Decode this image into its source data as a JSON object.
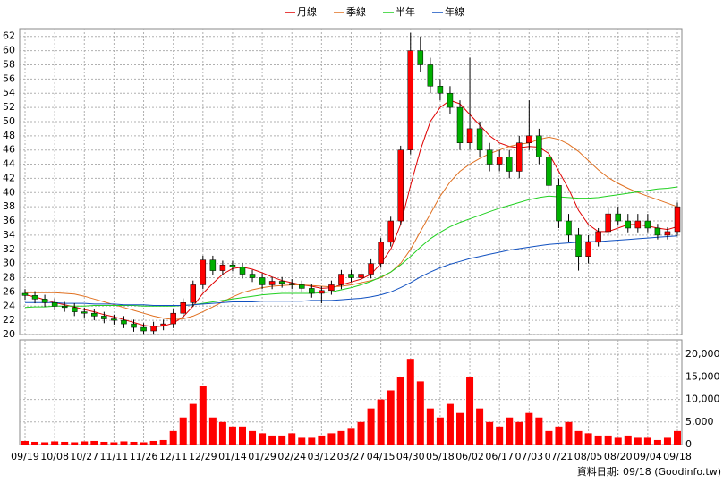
{
  "chart_data": [
    {
      "type": "candlestick",
      "legend": "top",
      "grid": true,
      "up_color": "#ff0000",
      "down_color": "#00b000",
      "categories": [
        "09/19",
        null,
        null,
        "10/08",
        null,
        null,
        "10/27",
        null,
        null,
        "11/11",
        null,
        null,
        "11/26",
        null,
        null,
        "12/11",
        null,
        null,
        "12/29",
        null,
        null,
        "01/14",
        null,
        null,
        "01/29",
        null,
        null,
        "02/24",
        null,
        null,
        "03/12",
        null,
        null,
        "03/27",
        null,
        null,
        "04/15",
        null,
        null,
        "04/30",
        null,
        null,
        "05/18",
        null,
        null,
        "06/02",
        null,
        null,
        "06/17",
        null,
        null,
        "07/03",
        null,
        null,
        "07/21",
        null,
        null,
        "08/05",
        null,
        null,
        "08/20",
        null,
        null,
        "09/04",
        null,
        null,
        "09/18"
      ],
      "open": [
        25.8,
        25.5,
        25,
        24.5,
        24,
        23.8,
        23.2,
        23,
        22.6,
        22.2,
        22,
        21.5,
        21,
        20.5,
        21.2,
        21.5,
        23,
        24.5,
        27,
        30.5,
        29,
        29.8,
        29.5,
        28.5,
        28,
        27,
        27.5,
        27.2,
        27,
        26.5,
        25.8,
        26.2,
        27,
        28.5,
        28,
        28.5,
        30,
        33,
        36,
        46,
        60,
        58,
        55,
        54,
        52,
        47,
        49,
        46,
        44,
        45,
        43,
        47,
        48,
        45,
        41,
        36,
        34,
        31,
        33,
        34.5,
        37,
        36,
        35,
        36,
        35,
        34,
        34.5
      ],
      "high": [
        26.4,
        26.1,
        25.6,
        25.1,
        24.6,
        24.4,
        23.8,
        23.6,
        23.2,
        22.8,
        22.6,
        22.1,
        21.6,
        21.8,
        22.1,
        23.6,
        25.1,
        27.6,
        31.1,
        31.1,
        30.4,
        30.4,
        30.1,
        29.1,
        28.6,
        28.1,
        28.1,
        27.8,
        27.6,
        27.1,
        26.8,
        27.6,
        29.1,
        29.1,
        29.1,
        30.6,
        33.6,
        36.6,
        46.6,
        62.5,
        62,
        59,
        56,
        55,
        53,
        59,
        50,
        47,
        46,
        46,
        48,
        53,
        49,
        46,
        42,
        37,
        35,
        34,
        35,
        38,
        38,
        37,
        37,
        37,
        35.6,
        35.1,
        38.6
      ],
      "low": [
        24.9,
        24.4,
        23.9,
        23.4,
        23.2,
        22.6,
        22.4,
        22,
        21.6,
        21.4,
        20.9,
        20.4,
        20.1,
        20.1,
        20.6,
        20.9,
        22.4,
        23.9,
        26.4,
        28.4,
        28.4,
        28.9,
        27.9,
        27.4,
        26.4,
        26.4,
        26.6,
        26.4,
        25.9,
        25.2,
        24.4,
        25.6,
        26.4,
        27.4,
        27.4,
        27.9,
        29.4,
        32.4,
        35.4,
        45.4,
        57,
        54,
        53,
        51,
        46,
        46,
        45,
        43,
        43,
        42,
        42,
        46,
        44,
        40,
        35,
        33,
        29,
        30,
        32.4,
        33.9,
        35.4,
        34.4,
        34.4,
        34.4,
        33.4,
        33.4,
        33.9
      ],
      "close": [
        25.5,
        25,
        24.5,
        24,
        23.8,
        23.2,
        23,
        22.6,
        22.2,
        22,
        21.5,
        21,
        20.5,
        21.2,
        21.5,
        23,
        24.5,
        27,
        30.5,
        29,
        29.8,
        29.5,
        28.5,
        28,
        27,
        27.5,
        27.2,
        27,
        26.5,
        25.8,
        26.2,
        27,
        28.5,
        28,
        28.5,
        30,
        33,
        36,
        46,
        60,
        58,
        55,
        54,
        52,
        47,
        49,
        46,
        44,
        45,
        43,
        47,
        48,
        45,
        41,
        36,
        34,
        31,
        33,
        34.5,
        37,
        36,
        35,
        36,
        35,
        34,
        34.5,
        38
      ],
      "series": [
        {
          "name": "月線",
          "color": "#e00000",
          "values": [
            25.6,
            25.3,
            24.9,
            24.5,
            24.2,
            23.9,
            23.5,
            23.2,
            22.8,
            22.5,
            22.1,
            21.7,
            21.3,
            21.1,
            21.2,
            21.6,
            22.5,
            24,
            25.8,
            27.2,
            28.5,
            29.3,
            29.5,
            29.2,
            28.7,
            28.1,
            27.6,
            27.3,
            27,
            26.8,
            26.5,
            26.6,
            27,
            27.4,
            27.8,
            28.5,
            30,
            32,
            35.5,
            41,
            46,
            50,
            52,
            53,
            52.5,
            51,
            49.5,
            48,
            47,
            46.5,
            46.3,
            46.5,
            46.4,
            45.5,
            43,
            40.5,
            37.5,
            35.5,
            34.5,
            34.5,
            35,
            35.5,
            35.5,
            35.3,
            35,
            34.8,
            35.2
          ]
        },
        {
          "name": "季線",
          "color": "#e07020",
          "values": [
            25.9,
            25.9,
            25.9,
            25.9,
            25.8,
            25.7,
            25.4,
            25,
            24.6,
            24.2,
            23.8,
            23.4,
            23,
            22.6,
            22.3,
            22.1,
            22.2,
            22.6,
            23.2,
            23.9,
            24.6,
            25.3,
            25.9,
            26.3,
            26.6,
            26.8,
            26.9,
            27,
            27,
            26.9,
            26.8,
            26.7,
            26.8,
            27,
            27.3,
            27.6,
            28,
            28.8,
            30,
            32,
            34.5,
            37,
            39.5,
            41.5,
            43,
            44,
            44.8,
            45.5,
            46,
            46.5,
            46.8,
            47,
            47.5,
            47.8,
            47.5,
            46.8,
            45.8,
            44.5,
            43.2,
            42.1,
            41.3,
            40.6,
            40,
            39.5,
            39,
            38.5,
            38
          ]
        },
        {
          "name": "半年",
          "color": "#20d020",
          "values": [
            23.8,
            23.9,
            23.9,
            24,
            24,
            24,
            24,
            24.1,
            24.1,
            24.1,
            24.1,
            24.1,
            24,
            24,
            24,
            24,
            24.1,
            24.2,
            24.4,
            24.6,
            24.8,
            25,
            25.2,
            25.4,
            25.6,
            25.7,
            25.8,
            25.8,
            25.8,
            25.8,
            25.9,
            26,
            26.3,
            26.6,
            27,
            27.5,
            28.1,
            28.8,
            29.8,
            31,
            32.3,
            33.5,
            34.4,
            35.2,
            35.8,
            36.3,
            36.8,
            37.3,
            37.8,
            38.2,
            38.6,
            39,
            39.3,
            39.5,
            39.4,
            39.3,
            39.2,
            39.2,
            39.3,
            39.5,
            39.7,
            39.9,
            40.1,
            40.3,
            40.5,
            40.6,
            40.8
          ]
        },
        {
          "name": "年線",
          "color": "#1050c0",
          "values": [
            24.5,
            24.5,
            24.5,
            24.5,
            24.4,
            24.4,
            24.4,
            24.3,
            24.3,
            24.3,
            24.2,
            24.2,
            24.2,
            24.1,
            24.1,
            24.1,
            24.1,
            24.2,
            24.3,
            24.4,
            24.5,
            24.6,
            24.6,
            24.6,
            24.7,
            24.7,
            24.7,
            24.7,
            24.7,
            24.8,
            24.8,
            24.8,
            24.9,
            25,
            25.1,
            25.3,
            25.6,
            26,
            26.6,
            27.3,
            28.1,
            28.8,
            29.4,
            29.9,
            30.3,
            30.7,
            31,
            31.3,
            31.6,
            31.9,
            32.1,
            32.3,
            32.5,
            32.7,
            32.8,
            32.9,
            33,
            33.1,
            33.1,
            33.2,
            33.3,
            33.4,
            33.5,
            33.6,
            33.7,
            33.8,
            33.9
          ]
        }
      ],
      "ylim": [
        20,
        63.1
      ],
      "yticks": [
        20,
        22,
        24,
        26,
        28,
        30,
        32,
        34,
        36,
        38,
        40,
        42,
        44,
        46,
        48,
        50,
        52,
        54,
        56,
        58,
        60,
        62
      ]
    },
    {
      "type": "bar",
      "color": "#ff0000",
      "grid": true,
      "values": [
        800,
        600,
        500,
        700,
        600,
        500,
        700,
        800,
        600,
        500,
        700,
        600,
        500,
        800,
        1000,
        3000,
        6000,
        9000,
        13000,
        6000,
        5000,
        4000,
        4000,
        3000,
        2500,
        2000,
        2000,
        2500,
        1500,
        1500,
        2000,
        2500,
        3000,
        3500,
        5000,
        8000,
        10000,
        12000,
        15000,
        19000,
        14000,
        8000,
        6000,
        9000,
        7000,
        15000,
        8000,
        5000,
        4000,
        6000,
        5000,
        7000,
        6000,
        3000,
        4000,
        5000,
        3000,
        2500,
        2000,
        2000,
        1500,
        2000,
        1500,
        1500,
        1000,
        1500,
        3000
      ],
      "ylim": [
        0,
        23200
      ],
      "yticks": [
        0,
        {
          "value": 5000,
          "label": "5,000"
        },
        {
          "value": 10000,
          "label": "10,000"
        },
        {
          "value": 15000,
          "label": "15,000"
        },
        {
          "value": 20000,
          "label": "20,000"
        }
      ]
    }
  ],
  "footer": "資料日期: 09/18 (Goodinfo.tw)"
}
